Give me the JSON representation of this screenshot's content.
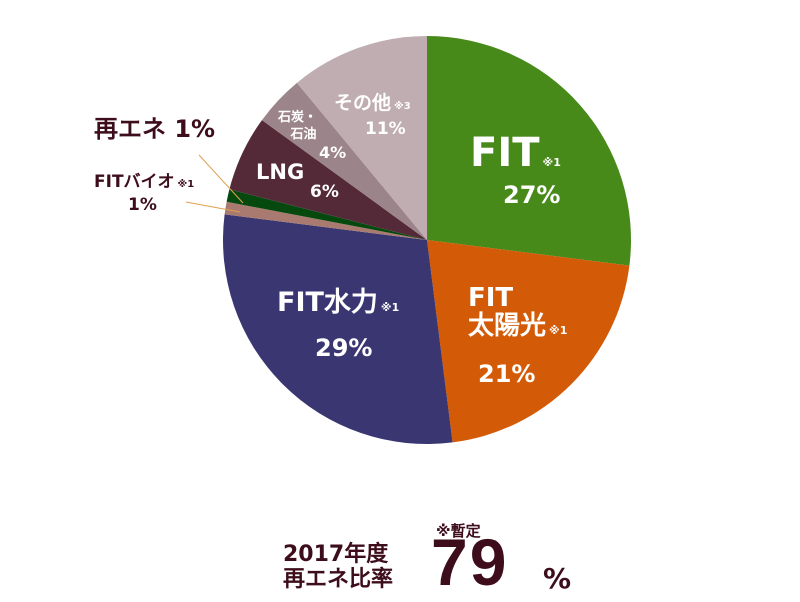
{
  "chart_data": {
    "type": "pie",
    "title": "2017年度 再エネ比率",
    "start_angle": "12 o'clock",
    "direction": "clockwise",
    "slices": [
      {
        "label": "FIT",
        "note": "※1",
        "value": 27,
        "display": "27%",
        "color": "#478a1a"
      },
      {
        "label": "FIT太陽光",
        "note": "※1",
        "value": 21,
        "display": "21%",
        "color": "#d35a06"
      },
      {
        "label": "FIT水力",
        "note": "※1",
        "value": 29,
        "display": "29%",
        "color": "#393671"
      },
      {
        "label": "FITバイオ",
        "note": "※1",
        "value": 1,
        "display": "1%",
        "color": "#a97a70"
      },
      {
        "label": "再エネ",
        "note": "",
        "value": 1,
        "display": "1%",
        "color": "#06490f"
      },
      {
        "label": "LNG",
        "note": "",
        "value": 6,
        "display": "6%",
        "color": "#552a38"
      },
      {
        "label": "石炭・石油",
        "note": "",
        "value": 4,
        "display": "4%",
        "color": "#9c848b"
      },
      {
        "label": "その他",
        "note": "※3",
        "value": 11,
        "display": "11%",
        "color": "#c0adb1"
      }
    ],
    "total_renewable_ratio": {
      "label": "2017年度 再エネ比率",
      "value": 79,
      "unit": "%",
      "note": "※暫定"
    }
  },
  "labels": {
    "fit": {
      "name": "FIT",
      "note": "※1",
      "pct": "27%"
    },
    "solar": {
      "name1": "FIT",
      "name2": "太陽光",
      "note": "※1",
      "pct": "21%"
    },
    "hydro": {
      "name": "FIT水力",
      "note": "※1",
      "pct": "29%"
    },
    "bio": {
      "name": "FITバイオ",
      "note": "※1",
      "pct": "1%"
    },
    "renew": {
      "name": "再エネ",
      "pct": "1%"
    },
    "lng": {
      "name": "LNG",
      "pct": "6%"
    },
    "coal": {
      "name1": "石炭・",
      "name2": "石油",
      "pct": "4%"
    },
    "other": {
      "name": "その他",
      "note": "※3",
      "pct": "11%"
    }
  },
  "footer": {
    "year_line1": "2017年度",
    "year_line2": "再エネ比率",
    "note": "※暫定",
    "value": "79",
    "unit": "%"
  }
}
